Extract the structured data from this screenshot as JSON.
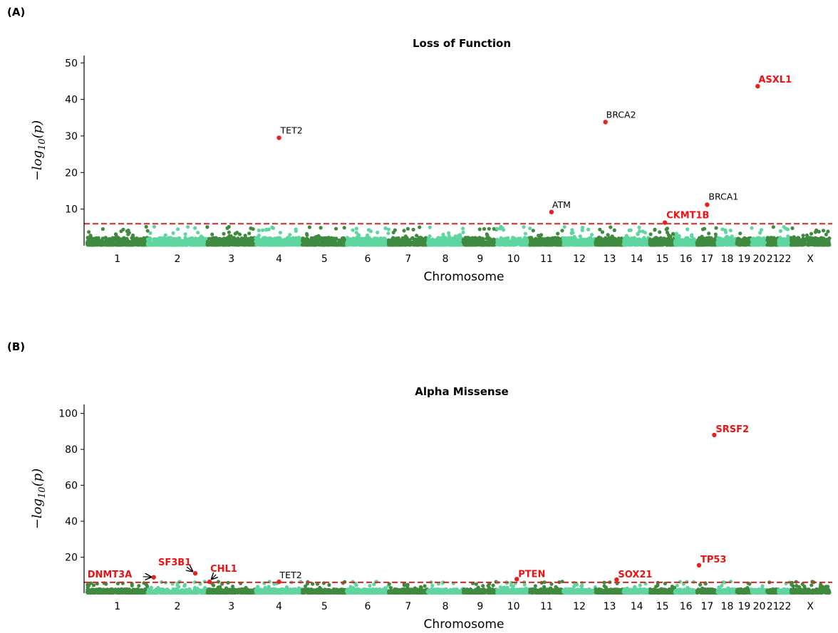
{
  "colors": {
    "chrom_dark": "#3f8a3f",
    "chrom_light": "#5fd5a0",
    "hit": "#e82020",
    "threshold": "#d62728",
    "highlight_text": "#ee1111"
  },
  "chart_data": [
    {
      "type": "scatter",
      "panel_label": "(A)",
      "title": "Loss of Function",
      "xlabel": "Chromosome",
      "ylabel_base": "−log",
      "ylabel_sub": "10",
      "ylabel_arg": "(p)",
      "ylim": [
        0,
        52
      ],
      "yticks": [
        10,
        20,
        30,
        40,
        50
      ],
      "threshold": 6.0,
      "chromosomes": [
        "1",
        "2",
        "3",
        "4",
        "5",
        "6",
        "7",
        "8",
        "9",
        "10",
        "11",
        "12",
        "13",
        "14",
        "15",
        "16",
        "17",
        "18",
        "19",
        "20",
        "21",
        "22",
        "X"
      ],
      "points": [
        {
          "gene": "TET2",
          "chrom": "4",
          "pos": 0.5,
          "y": 29.5,
          "highlight": false
        },
        {
          "gene": "BRCA2",
          "chrom": "13",
          "pos": 0.35,
          "y": 33.8,
          "highlight": false
        },
        {
          "gene": "ASXL1",
          "chrom": "20",
          "pos": 0.4,
          "y": 43.6,
          "highlight": true
        },
        {
          "gene": "ATM",
          "chrom": "11",
          "pos": 0.65,
          "y": 9.2,
          "highlight": false
        },
        {
          "gene": "BRCA1",
          "chrom": "17",
          "pos": 0.5,
          "y": 11.2,
          "highlight": false
        },
        {
          "gene": "CKMT1B",
          "chrom": "15",
          "pos": 0.6,
          "y": 6.3,
          "highlight": true
        }
      ]
    },
    {
      "type": "scatter",
      "panel_label": "(B)",
      "title": "Alpha Missense",
      "xlabel": "Chromosome",
      "ylabel_base": "−log",
      "ylabel_sub": "10",
      "ylabel_arg": "(p)",
      "ylim": [
        0,
        105
      ],
      "yticks": [
        20,
        40,
        60,
        80,
        100
      ],
      "threshold": 6.0,
      "chromosomes": [
        "1",
        "2",
        "3",
        "4",
        "5",
        "6",
        "7",
        "8",
        "9",
        "10",
        "11",
        "12",
        "13",
        "14",
        "15",
        "16",
        "17",
        "18",
        "19",
        "20",
        "21",
        "22",
        "X"
      ],
      "points": [
        {
          "gene": "SRSF2",
          "chrom": "17",
          "pos": 0.85,
          "y": 88,
          "highlight": true
        },
        {
          "gene": "TP53",
          "chrom": "17",
          "pos": 0.1,
          "y": 15.5,
          "highlight": true
        },
        {
          "gene": "DNMT3A",
          "chrom": "2",
          "pos": 0.1,
          "y": 8.8,
          "highlight": true
        },
        {
          "gene": "SF3B1",
          "chrom": "2",
          "pos": 0.8,
          "y": 11.0,
          "highlight": true
        },
        {
          "gene": "CHL1",
          "chrom": "3",
          "pos": 0.05,
          "y": 6.3,
          "highlight": true
        },
        {
          "gene": "TET2",
          "chrom": "4",
          "pos": 0.5,
          "y": 6.3,
          "highlight": false
        },
        {
          "gene": "PTEN",
          "chrom": "10",
          "pos": 0.6,
          "y": 7.8,
          "highlight": true
        },
        {
          "gene": "SOX21",
          "chrom": "13",
          "pos": 0.75,
          "y": 7.5,
          "highlight": true
        }
      ]
    }
  ]
}
